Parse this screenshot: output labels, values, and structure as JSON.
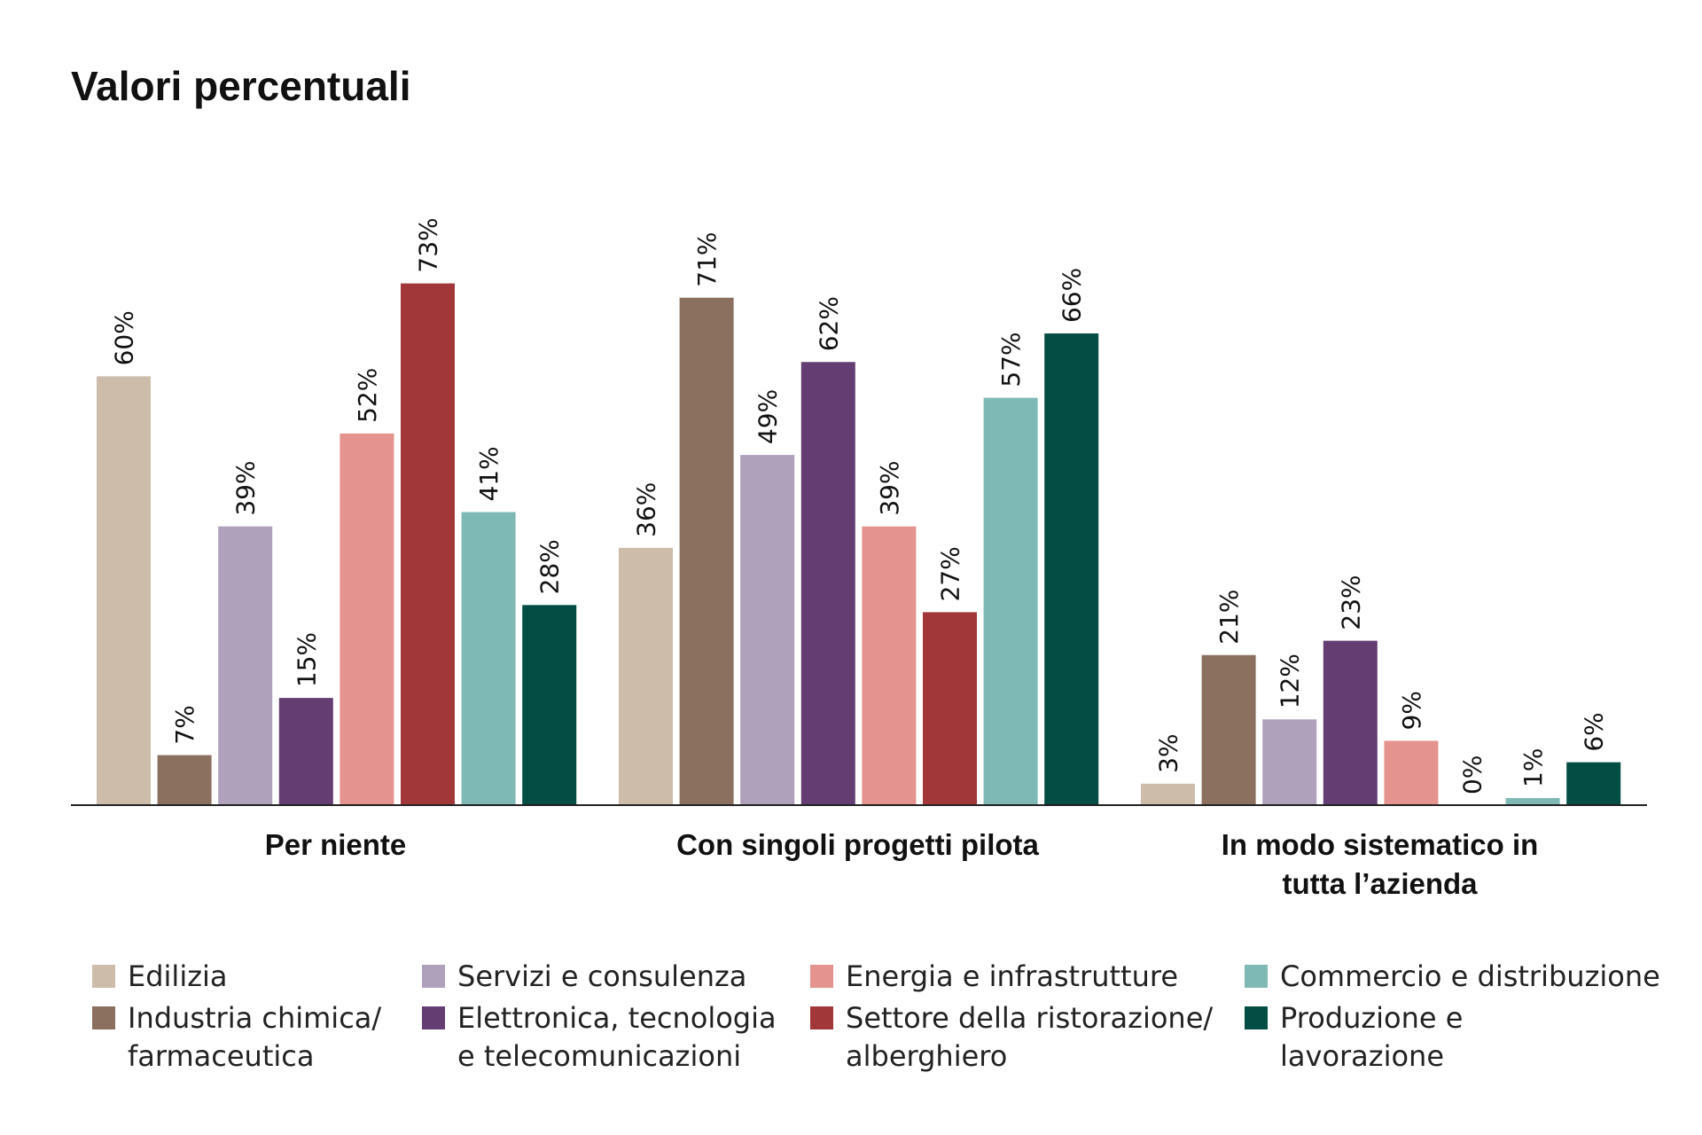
{
  "title": "Valori percentuali",
  "chart_data": {
    "type": "bar",
    "title": "Valori percentuali",
    "categories": [
      "Per niente",
      "Con singoli progetti pilota",
      "In modo sistematico in\ntutta l’azienda"
    ],
    "series": [
      {
        "name": "Edilizia",
        "color": "#cdbca9",
        "values": [
          60,
          36,
          3
        ]
      },
      {
        "name": "Industria chimica/\nfarmaceutica",
        "color": "#8b7060",
        "values": [
          7,
          71,
          21
        ]
      },
      {
        "name": "Servizi e consulenza",
        "color": "#afa0bc",
        "values": [
          39,
          49,
          12
        ]
      },
      {
        "name": "Elettronica, tecnologia\ne telecomunicazioni",
        "color": "#643d72",
        "values": [
          15,
          62,
          23
        ]
      },
      {
        "name": "Energia e infrastrutture",
        "color": "#e4938e",
        "values": [
          52,
          39,
          9
        ]
      },
      {
        "name": "Settore della ristorazione/\nalberghiero",
        "color": "#a23739",
        "values": [
          73,
          27,
          0
        ]
      },
      {
        "name": "Commercio e distribuzione",
        "color": "#7fb9b5",
        "values": [
          41,
          57,
          1
        ]
      },
      {
        "name": "Produzione e\nlavorazione",
        "color": "#034d44",
        "values": [
          28,
          66,
          6
        ]
      }
    ],
    "value_suffix": "%",
    "ylim": [
      0,
      80
    ],
    "grid": false,
    "legend_position": "bottom"
  }
}
